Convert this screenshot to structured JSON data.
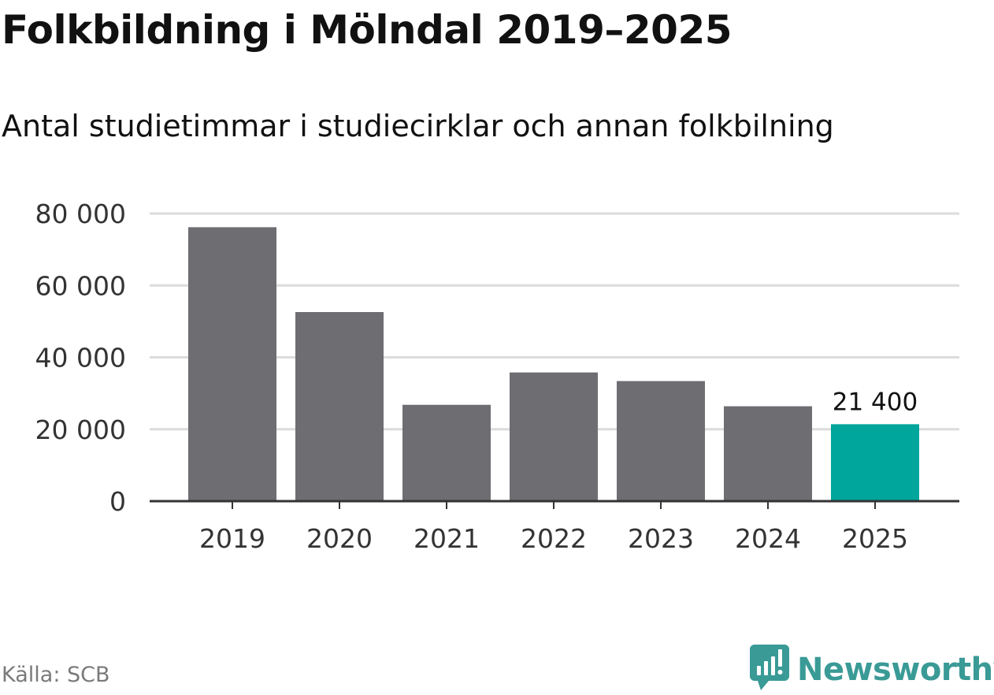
{
  "title": "Folkbildning i Mölndal 2019–2025",
  "subtitle": "Antal studietimmar i studiecirklar och annan folkbilning",
  "source": "Källa: SCB",
  "brand": {
    "name": "Newsworthy",
    "color": "#3a9a96",
    "icon": "newsworthy-logo-icon"
  },
  "colors": {
    "bar": "#6e6d72",
    "highlight": "#00a59c",
    "grid": "#dcdcdc",
    "axis": "#333333"
  },
  "chart_data": {
    "type": "bar",
    "title": "Folkbildning i Mölndal 2019–2025",
    "subtitle": "Antal studietimmar i studiecirklar och annan folkbilning",
    "xlabel": "",
    "ylabel": "",
    "categories": [
      "2019",
      "2020",
      "2021",
      "2022",
      "2023",
      "2024",
      "2025"
    ],
    "values": [
      76200,
      52600,
      26800,
      35800,
      33400,
      26400,
      21400
    ],
    "highlight_index": 6,
    "data_labels": [
      {
        "index": 6,
        "text": "21 400"
      }
    ],
    "ylim": [
      0,
      80000
    ],
    "yticks": [
      {
        "value": 0,
        "label": "0"
      },
      {
        "value": 20000,
        "label": "20 000"
      },
      {
        "value": 40000,
        "label": "40 000"
      },
      {
        "value": 60000,
        "label": "60 000"
      },
      {
        "value": 80000,
        "label": "80 000"
      }
    ],
    "grid": true,
    "legend": "none"
  }
}
